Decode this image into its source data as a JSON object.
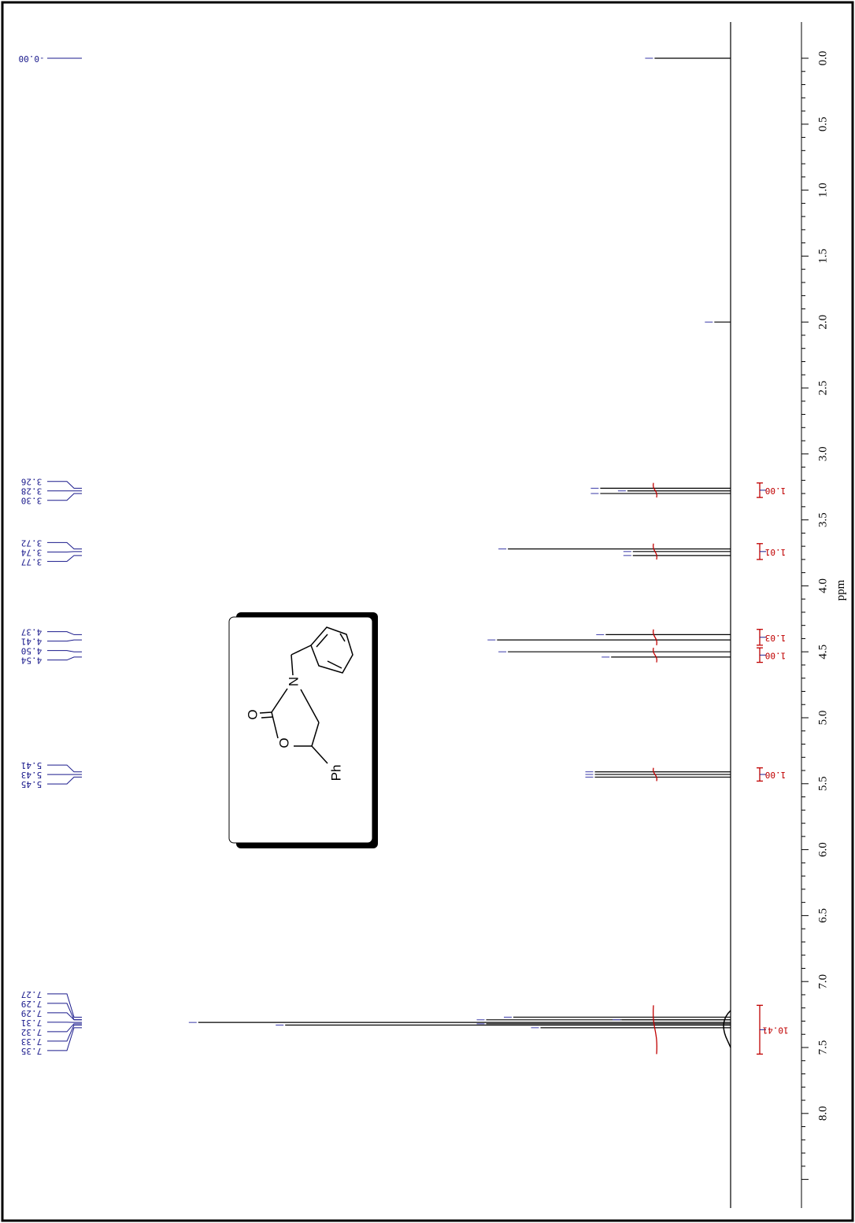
{
  "chart_data": {
    "type": "line",
    "xlabel": "ppm",
    "x_axis": {
      "range": [
        0.0,
        8.5
      ],
      "ticks": [
        0.0,
        0.5,
        1.0,
        1.5,
        2.0,
        2.5,
        3.0,
        3.5,
        4.0,
        4.5,
        5.0,
        5.5,
        6.0,
        6.5,
        7.0,
        7.5,
        8.0
      ],
      "tick_labels": [
        "0.0",
        "0.5",
        "1.0",
        "1.5",
        "2.0",
        "2.5",
        "3.0",
        "3.5",
        "4.0",
        "4.5",
        "5.0",
        "5.5",
        "6.0",
        "6.5",
        "7.0",
        "7.5",
        "8.0"
      ]
    },
    "peaks": [
      {
        "ppm": -0.0,
        "height": 0.14
      },
      {
        "ppm": 2.0,
        "height": 0.03
      },
      {
        "ppm": 3.26,
        "height": 0.24
      },
      {
        "ppm": 3.28,
        "height": 0.19
      },
      {
        "ppm": 3.3,
        "height": 0.24
      },
      {
        "ppm": 3.72,
        "height": 0.41
      },
      {
        "ppm": 3.74,
        "height": 0.18
      },
      {
        "ppm": 3.77,
        "height": 0.18
      },
      {
        "ppm": 4.37,
        "height": 0.23
      },
      {
        "ppm": 4.41,
        "height": 0.43
      },
      {
        "ppm": 4.5,
        "height": 0.41
      },
      {
        "ppm": 4.54,
        "height": 0.22
      },
      {
        "ppm": 5.41,
        "height": 0.25
      },
      {
        "ppm": 5.43,
        "height": 0.25
      },
      {
        "ppm": 5.45,
        "height": 0.25
      },
      {
        "ppm": 7.27,
        "height": 0.4
      },
      {
        "ppm": 7.29,
        "height": 0.45
      },
      {
        "ppm": 7.29,
        "height": 0.2
      },
      {
        "ppm": 7.31,
        "height": 0.98
      },
      {
        "ppm": 7.32,
        "height": 0.45
      },
      {
        "ppm": 7.33,
        "height": 0.82
      },
      {
        "ppm": 7.35,
        "height": 0.35
      }
    ],
    "peak_labels": [
      {
        "ppm": -0.0,
        "text": "-0.00"
      },
      {
        "ppm": 3.26,
        "text": "3.26"
      },
      {
        "ppm": 3.28,
        "text": "3.28"
      },
      {
        "ppm": 3.3,
        "text": "3.30"
      },
      {
        "ppm": 3.72,
        "text": "3.72"
      },
      {
        "ppm": 3.74,
        "text": "3.74"
      },
      {
        "ppm": 3.77,
        "text": "3.77"
      },
      {
        "ppm": 4.37,
        "text": "4.37"
      },
      {
        "ppm": 4.41,
        "text": "4.41"
      },
      {
        "ppm": 4.5,
        "text": "4.50"
      },
      {
        "ppm": 4.54,
        "text": "4.54"
      },
      {
        "ppm": 5.41,
        "text": "5.41"
      },
      {
        "ppm": 5.43,
        "text": "5.43"
      },
      {
        "ppm": 5.45,
        "text": "5.45"
      },
      {
        "ppm": 7.27,
        "text": "7.27"
      },
      {
        "ppm": 7.29,
        "text": "7.29"
      },
      {
        "ppm": 7.29,
        "text": "7.29"
      },
      {
        "ppm": 7.31,
        "text": "7.31"
      },
      {
        "ppm": 7.32,
        "text": "7.32"
      },
      {
        "ppm": 7.33,
        "text": "7.33"
      },
      {
        "ppm": 7.35,
        "text": "7.35"
      }
    ],
    "integrals": [
      {
        "from": 3.22,
        "to": 3.33,
        "value": "1.00"
      },
      {
        "from": 3.68,
        "to": 3.8,
        "value": "1.01"
      },
      {
        "from": 4.33,
        "to": 4.45,
        "value": "1.03"
      },
      {
        "from": 4.47,
        "to": 4.58,
        "value": "1.00"
      },
      {
        "from": 5.38,
        "to": 5.48,
        "value": "1.00"
      },
      {
        "from": 7.18,
        "to": 7.55,
        "value": "10.41"
      }
    ],
    "colors": {
      "spectrum": "#000000",
      "peak_labels": "#1a1a8c",
      "integrals": "#c00000"
    }
  },
  "structure": {
    "atom_labels": [
      "N",
      "O",
      "O",
      "Ph"
    ]
  }
}
